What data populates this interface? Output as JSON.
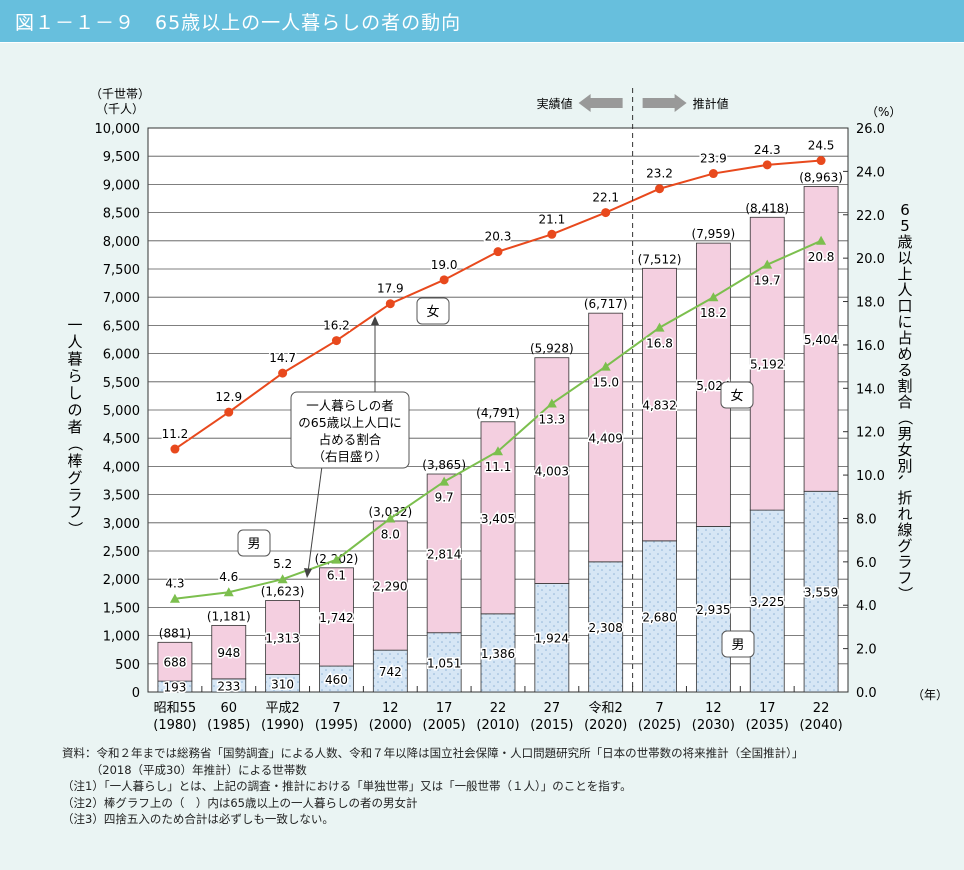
{
  "header": {
    "title": "図１－１－９　65歳以上の一人暮らしの者の動向"
  },
  "chart_data": {
    "type": "bar+line",
    "categories": [
      [
        "昭和55",
        "(1980)"
      ],
      [
        "60",
        "(1985)"
      ],
      [
        "平成2",
        "(1990)"
      ],
      [
        "7",
        "(1995)"
      ],
      [
        "12",
        "(2000)"
      ],
      [
        "17",
        "(2005)"
      ],
      [
        "22",
        "(2010)"
      ],
      [
        "27",
        "(2015)"
      ],
      [
        "令和2",
        "(2020)"
      ],
      [
        "7",
        "(2025)"
      ],
      [
        "12",
        "(2030)"
      ],
      [
        "17",
        "(2035)"
      ],
      [
        "22",
        "(2040)"
      ]
    ],
    "x_unit": "（年）",
    "left_axis": {
      "unit_lines": [
        "（千世帯）",
        "（千人）"
      ],
      "label": "一人暮らしの者（棒グラフ）",
      "range": [
        0,
        10000
      ],
      "step": 500
    },
    "right_axis": {
      "unit": "（%）",
      "label": "65歳以上人口に占める割合（男女別、折れ線グラフ）",
      "range": [
        0,
        26
      ],
      "step": 2
    },
    "bars": {
      "male": [
        193,
        233,
        310,
        460,
        742,
        1051,
        1386,
        1924,
        2308,
        2680,
        2935,
        3225,
        3559
      ],
      "female": [
        688,
        948,
        1313,
        1742,
        2290,
        2814,
        3405,
        4003,
        4409,
        4832,
        5024,
        5192,
        5404
      ],
      "totals": [
        "(881)",
        "(1,181)",
        "(1,623)",
        "(2,202)",
        "(3,032)",
        "(3,865)",
        "(4,791)",
        "(5,928)",
        "(6,717)",
        "(7,512)",
        "(7,959)",
        "(8,418)",
        "(8,963)"
      ],
      "male_labels": [
        "193",
        "233",
        "310",
        "460",
        "742",
        "1,051",
        "1,386",
        "1,924",
        "2,308",
        "2,680",
        "2,935",
        "3,225",
        "3,559"
      ],
      "female_labels": [
        "688",
        "948",
        "1,313",
        "1,742",
        "2,290",
        "2,814",
        "3,405",
        "4,003",
        "4,409",
        "4,832",
        "5,024",
        "5,192",
        "5,404"
      ]
    },
    "lines": {
      "female": [
        11.2,
        12.9,
        14.7,
        16.2,
        17.9,
        19.0,
        20.3,
        21.1,
        22.1,
        23.2,
        23.9,
        24.3,
        24.5
      ],
      "male": [
        4.3,
        4.6,
        5.2,
        6.1,
        8.0,
        9.7,
        11.1,
        13.3,
        15.0,
        16.8,
        18.2,
        19.7,
        20.8
      ]
    },
    "colors": {
      "male_bar": "#d6e6f5",
      "female_bar": "#f4cfe0",
      "female_line": "#e8491d",
      "male_line": "#7cbf4e",
      "header": "#67bfdd"
    },
    "annotations": {
      "actual": "実績値",
      "projected": "推計値",
      "female_tag": "女",
      "male_tag": "男",
      "callout": [
        "一人暮らしの者",
        "の65歳以上人口に",
        "占める割合",
        "（右目盛り）"
      ]
    },
    "grid": true
  },
  "notes": [
    "資料：令和２年までは総務省「国勢調査」による人数、令和７年以降は国立社会保障・人口問題研究所「日本の世帯数の将来推計（全国推計）」",
    "　　　（2018（平成30）年推計）による世帯数",
    "（注1）「一人暮らし」とは、上記の調査・推計における「単独世帯」又は「一般世帯（１人）」のことを指す。",
    "（注2）棒グラフ上の（　）内は65歳以上の一人暮らしの者の男女計",
    "（注3）四捨五入のため合計は必ずしも一致しない。"
  ]
}
